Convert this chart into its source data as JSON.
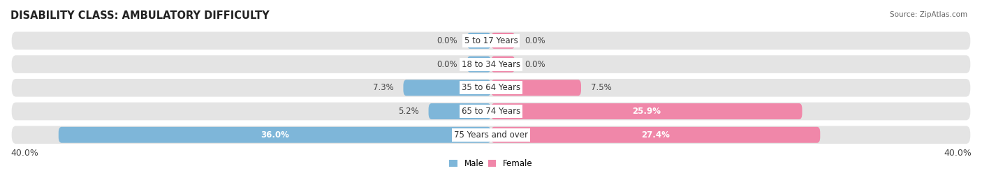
{
  "title": "DISABILITY CLASS: AMBULATORY DIFFICULTY",
  "source": "Source: ZipAtlas.com",
  "categories": [
    "5 to 17 Years",
    "18 to 34 Years",
    "35 to 64 Years",
    "65 to 74 Years",
    "75 Years and over"
  ],
  "male_values": [
    0.0,
    0.0,
    7.3,
    5.2,
    36.0
  ],
  "female_values": [
    0.0,
    0.0,
    7.5,
    25.9,
    27.4
  ],
  "male_color": "#7EB6D9",
  "female_color": "#F087A9",
  "axis_limit": 40.0,
  "bar_height": 0.68,
  "background_color": "#ffffff",
  "bar_bg_color": "#e4e4e4",
  "title_fontsize": 10.5,
  "label_fontsize": 8.5,
  "tick_fontsize": 9,
  "category_fontsize": 8.5,
  "min_bar_display": 2.0
}
